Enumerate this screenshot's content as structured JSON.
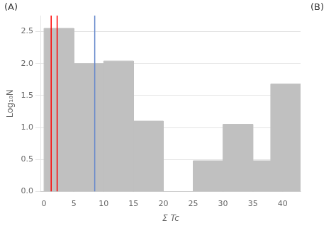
{
  "chart_data": {
    "type": "bar",
    "x": [
      0,
      5,
      10,
      15,
      25,
      30,
      35,
      38
    ],
    "bar_width": 5,
    "values": [
      2.55,
      2.0,
      2.04,
      1.1,
      0.48,
      1.05,
      0.48,
      1.68
    ],
    "color": "#c0c0c0",
    "xlabel": "Σ Tc",
    "ylabel": "Log₁₀N",
    "xlim": [
      -0.5,
      43
    ],
    "ylim": [
      0,
      2.75
    ],
    "xticks": [
      0,
      5,
      10,
      15,
      20,
      25,
      30,
      35,
      40
    ],
    "yticks": [
      {
        "value": 0,
        "label": "0.0"
      },
      0.5,
      {
        "value": 1.0,
        "label": "1.0"
      },
      1.5,
      {
        "value": 2.0,
        "label": "2.0"
      },
      2.5
    ],
    "vlines": [
      {
        "x": 1.2,
        "color": "red"
      },
      {
        "x": 2.2,
        "color": "red"
      },
      {
        "x": 8.5,
        "color": "#6688cc"
      }
    ],
    "annotations": [
      "(A)",
      "(B)"
    ],
    "grid": "y"
  }
}
